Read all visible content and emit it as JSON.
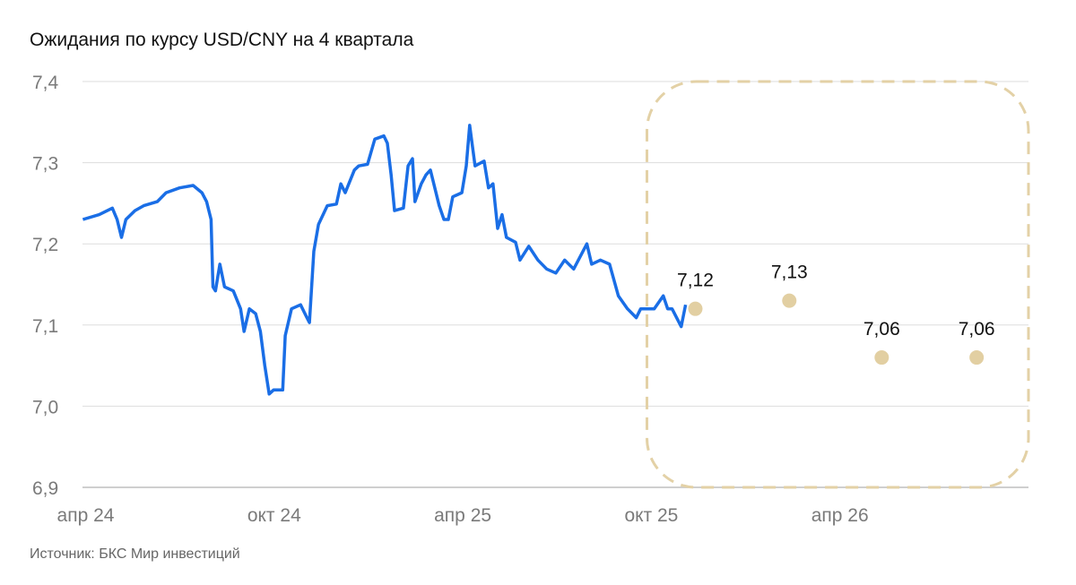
{
  "chart_data": {
    "type": "line",
    "title": "Ожидания по курсу USD/CNY на 4 квартала",
    "source": "Источник: БКС Мир инвестиций",
    "xlabel": "",
    "ylabel": "",
    "x_units": "months since apr 24",
    "xlim": [
      -0.1,
      30
    ],
    "ylim": [
      6.9,
      7.4
    ],
    "grid": true,
    "yticks": [
      {
        "value": 6.9,
        "label": "6,9"
      },
      {
        "value": 7.0,
        "label": "7,0"
      },
      {
        "value": 7.1,
        "label": "7,1"
      },
      {
        "value": 7.2,
        "label": "7,2"
      },
      {
        "value": 7.3,
        "label": "7,3"
      },
      {
        "value": 7.4,
        "label": "7,4"
      }
    ],
    "xticks": [
      {
        "value": 0,
        "label": "апр 24"
      },
      {
        "value": 6,
        "label": "окт 24"
      },
      {
        "value": 12,
        "label": "апр 25"
      },
      {
        "value": 18,
        "label": "окт 25"
      },
      {
        "value": 24,
        "label": "апр 26"
      }
    ],
    "colors": {
      "line": "#1a6ee6",
      "forecast": "#e2cfa2",
      "box": "#e3d1a6",
      "grid": "#dddddd"
    },
    "forecast_region_start": 17.86,
    "series": [
      {
        "name": "USD/CNY",
        "x": [
          -0.09,
          0.43,
          0.85,
          1.0,
          1.14,
          1.28,
          1.57,
          1.85,
          2.28,
          2.56,
          2.99,
          3.42,
          3.7,
          3.85,
          3.99,
          4.05,
          4.13,
          4.27,
          4.42,
          4.7,
          4.93,
          5.04,
          5.21,
          5.41,
          5.56,
          5.7,
          5.84,
          5.98,
          6.27,
          6.35,
          6.55,
          6.84,
          7.04,
          7.12,
          7.26,
          7.41,
          7.69,
          7.98,
          8.12,
          8.26,
          8.55,
          8.69,
          8.97,
          9.2,
          9.49,
          9.6,
          9.72,
          9.83,
          10.11,
          10.26,
          10.4,
          10.48,
          10.68,
          10.83,
          10.97,
          11.25,
          11.4,
          11.54,
          11.68,
          11.97,
          12.11,
          12.22,
          12.39,
          12.68,
          12.82,
          12.96,
          13.11,
          13.25,
          13.39,
          13.68,
          13.82,
          14.1,
          14.39,
          14.67,
          14.96,
          15.24,
          15.53,
          15.95,
          16.1,
          16.38,
          16.67,
          16.95,
          17.24,
          17.52,
          17.66,
          17.81,
          18.09,
          18.38,
          18.52,
          18.66,
          18.95,
          19.09
        ],
        "values": [
          7.23,
          7.236,
          7.244,
          7.23,
          7.208,
          7.23,
          7.241,
          7.247,
          7.252,
          7.263,
          7.269,
          7.272,
          7.263,
          7.252,
          7.23,
          7.147,
          7.142,
          7.175,
          7.147,
          7.142,
          7.12,
          7.092,
          7.12,
          7.114,
          7.092,
          7.05,
          7.015,
          7.02,
          7.02,
          7.087,
          7.12,
          7.125,
          7.109,
          7.103,
          7.191,
          7.224,
          7.247,
          7.249,
          7.274,
          7.263,
          7.291,
          7.296,
          7.298,
          7.329,
          7.333,
          7.324,
          7.285,
          7.241,
          7.244,
          7.296,
          7.305,
          7.252,
          7.274,
          7.285,
          7.291,
          7.247,
          7.23,
          7.23,
          7.258,
          7.263,
          7.296,
          7.346,
          7.296,
          7.302,
          7.269,
          7.274,
          7.219,
          7.236,
          7.208,
          7.202,
          7.18,
          7.197,
          7.18,
          7.169,
          7.164,
          7.18,
          7.169,
          7.2,
          7.175,
          7.18,
          7.175,
          7.136,
          7.12,
          7.109,
          7.12,
          7.12,
          7.12,
          7.136,
          7.12,
          7.12,
          7.098,
          7.125
        ]
      },
      {
        "name": "Прогноз",
        "type": "scatter",
        "x": [
          19.4,
          22.39,
          25.33,
          28.35
        ],
        "values": [
          7.12,
          7.13,
          7.06,
          7.06
        ],
        "labels": [
          "7,12",
          "7,13",
          "7,06",
          "7,06"
        ]
      }
    ]
  }
}
